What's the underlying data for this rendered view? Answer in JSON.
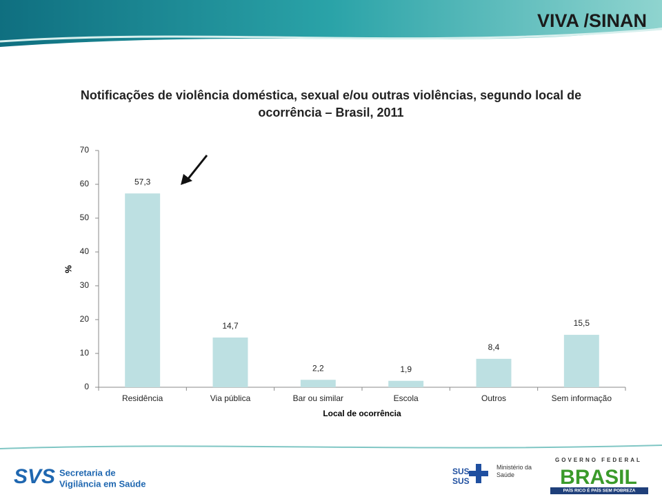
{
  "header": {
    "badge": "VIVA /SINAN"
  },
  "chart_data": {
    "type": "bar",
    "title": "Notificações de violência doméstica, sexual e/ou outras violências, segundo local de ocorrência – Brasil, 2011",
    "x_label": "Local de ocorrência",
    "y_label": "%",
    "categories": [
      "Residência",
      "Via pública",
      "Bar ou similar",
      "Escola",
      "Outros",
      "Sem informação"
    ],
    "values": [
      57.3,
      14.7,
      2.2,
      1.9,
      8.4,
      15.5
    ],
    "value_labels": [
      "57,3",
      "14,7",
      "2,2",
      "1,9",
      "8,4",
      "15,5"
    ],
    "color": "#bde0e2",
    "ylim": [
      0,
      70
    ],
    "yticks": [
      0,
      10,
      20,
      30,
      40,
      50,
      60,
      70
    ],
    "grid": false
  },
  "footer": {
    "svs_line1": "Secretaria de",
    "svs_line2": "Vigilância em Saúde",
    "sus": "SUS",
    "ministry": "Ministério da Saúde",
    "gov": "GOVERNO FEDERAL",
    "brasil": "BRASIL",
    "motto": "PAÍS RICO É PAÍS SEM POBREZA"
  }
}
